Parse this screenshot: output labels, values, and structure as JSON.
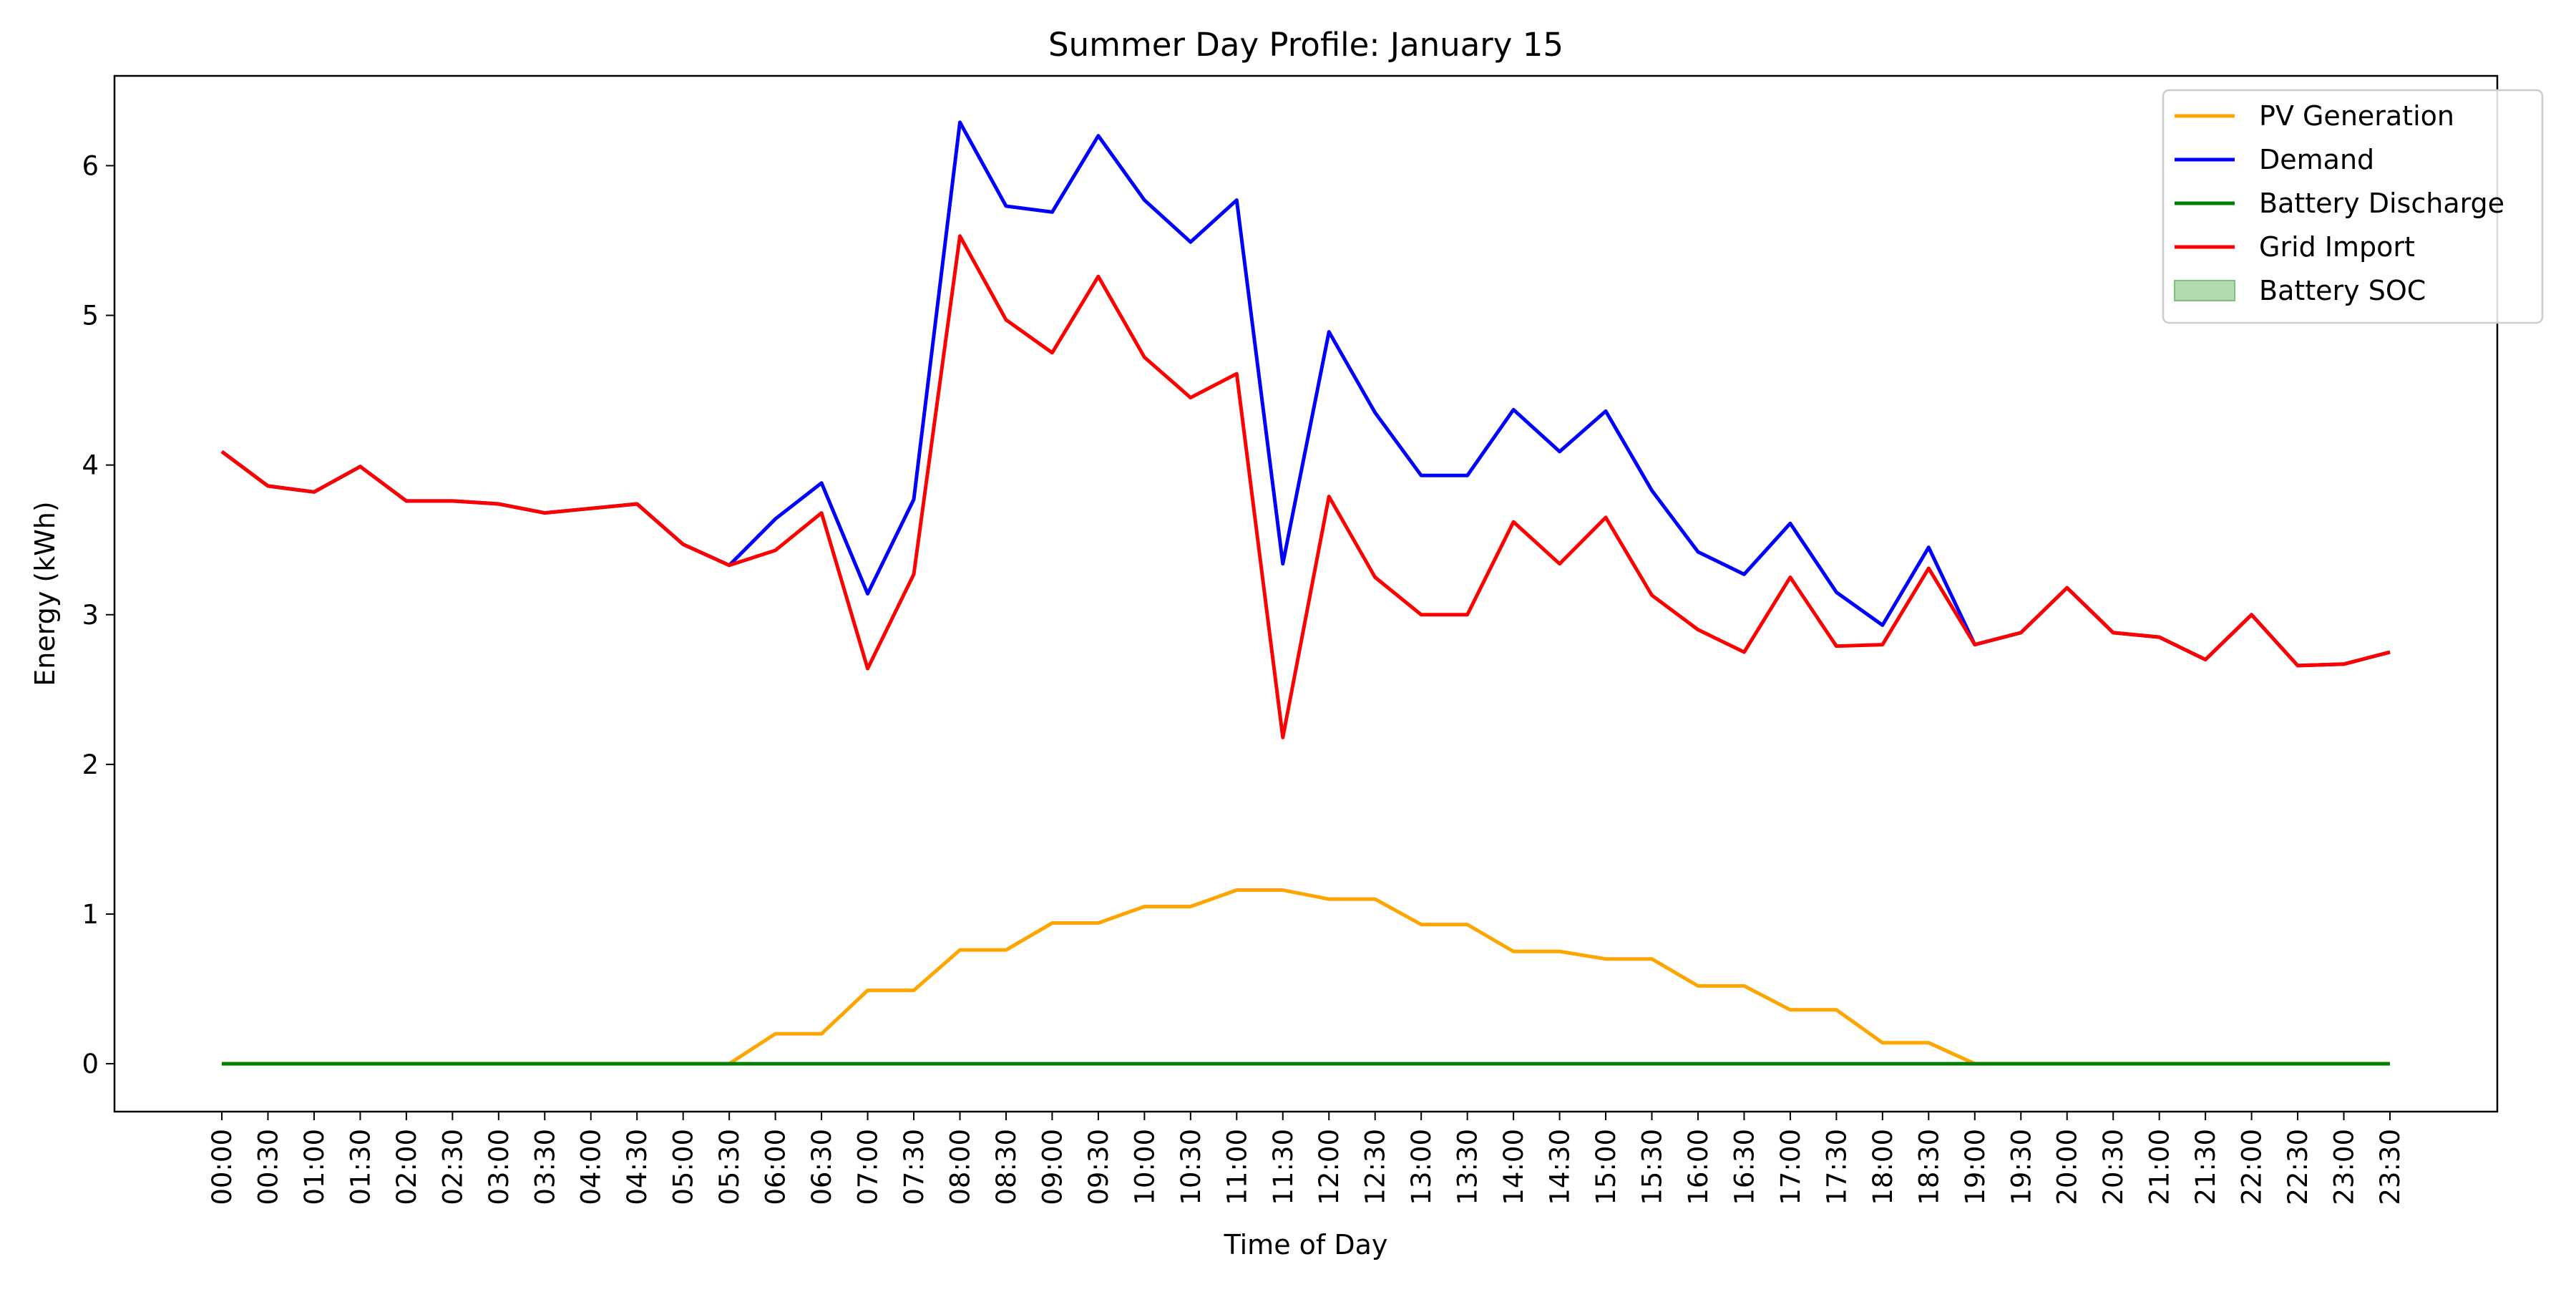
{
  "chart_data": {
    "type": "line",
    "title": "Summer Day Profile: January 15",
    "xlabel": "Time of Day",
    "ylabel": "Energy (kWh)",
    "ylim": [
      -0.32,
      6.6
    ],
    "yticks": [
      0,
      1,
      2,
      3,
      4,
      5,
      6
    ],
    "grid": false,
    "legend_position": "top-right",
    "categories": [
      "00:00",
      "00:30",
      "01:00",
      "01:30",
      "02:00",
      "02:30",
      "03:00",
      "03:30",
      "04:00",
      "04:30",
      "05:00",
      "05:30",
      "06:00",
      "06:30",
      "07:00",
      "07:30",
      "08:00",
      "08:30",
      "09:00",
      "09:30",
      "10:00",
      "10:30",
      "11:00",
      "11:30",
      "12:00",
      "12:30",
      "13:00",
      "13:30",
      "14:00",
      "14:30",
      "15:00",
      "15:30",
      "16:00",
      "16:30",
      "17:00",
      "17:30",
      "18:00",
      "18:30",
      "19:00",
      "19:30",
      "20:00",
      "20:30",
      "21:00",
      "21:30",
      "22:00",
      "22:30",
      "23:00",
      "23:30"
    ],
    "series": [
      {
        "name": "PV Generation",
        "color": "#ffa500",
        "kind": "line",
        "values": [
          0,
          0,
          0,
          0,
          0,
          0,
          0,
          0,
          0,
          0,
          0,
          0,
          0.2,
          0.2,
          0.49,
          0.49,
          0.76,
          0.76,
          0.94,
          0.94,
          1.05,
          1.05,
          1.16,
          1.16,
          1.1,
          1.1,
          0.93,
          0.93,
          0.75,
          0.75,
          0.7,
          0.7,
          0.52,
          0.52,
          0.36,
          0.36,
          0.14,
          0.14,
          0,
          0,
          0,
          0,
          0,
          0,
          0,
          0,
          0,
          0
        ]
      },
      {
        "name": "Demand",
        "color": "#0000ff",
        "kind": "line",
        "values": [
          4.09,
          3.86,
          3.82,
          3.99,
          3.76,
          3.76,
          3.74,
          3.68,
          3.71,
          3.74,
          3.47,
          3.33,
          3.64,
          3.88,
          3.14,
          3.77,
          6.29,
          5.73,
          5.69,
          6.2,
          5.77,
          5.49,
          5.77,
          3.34,
          4.89,
          4.35,
          3.93,
          3.93,
          4.37,
          4.09,
          4.36,
          3.83,
          3.42,
          3.27,
          3.61,
          3.15,
          2.93,
          3.45,
          2.8,
          2.88,
          3.18,
          2.88,
          2.85,
          2.7,
          3.0,
          2.66,
          2.67,
          2.75
        ]
      },
      {
        "name": "Battery Discharge",
        "color": "#008000",
        "kind": "line",
        "values": [
          0,
          0,
          0,
          0,
          0,
          0,
          0,
          0,
          0,
          0,
          0,
          0,
          0,
          0,
          0,
          0,
          0,
          0,
          0,
          0,
          0,
          0,
          0,
          0,
          0,
          0,
          0,
          0,
          0,
          0,
          0,
          0,
          0,
          0,
          0,
          0,
          0,
          0,
          0,
          0,
          0,
          0,
          0,
          0,
          0,
          0,
          0,
          0
        ]
      },
      {
        "name": "Grid Import",
        "color": "#ff0000",
        "kind": "line",
        "values": [
          4.09,
          3.86,
          3.82,
          3.99,
          3.76,
          3.76,
          3.74,
          3.68,
          3.71,
          3.74,
          3.47,
          3.33,
          3.43,
          3.68,
          2.64,
          3.27,
          5.53,
          4.97,
          4.75,
          5.26,
          4.72,
          4.45,
          4.61,
          2.18,
          3.79,
          3.25,
          3.0,
          3.0,
          3.62,
          3.34,
          3.65,
          3.13,
          2.9,
          2.75,
          3.25,
          2.79,
          2.8,
          3.31,
          2.8,
          2.88,
          3.18,
          2.88,
          2.85,
          2.7,
          3.0,
          2.66,
          2.67,
          2.75
        ]
      },
      {
        "name": "Battery SOC",
        "color": "#b2dbb2",
        "edge_color": "#7fbf7f",
        "kind": "fill",
        "values": [
          0,
          0,
          0,
          0,
          0,
          0,
          0,
          0,
          0,
          0,
          0,
          0,
          0,
          0,
          0,
          0,
          0,
          0,
          0,
          0,
          0,
          0,
          0,
          0,
          0,
          0,
          0,
          0,
          0,
          0,
          0,
          0,
          0,
          0,
          0,
          0,
          0,
          0,
          0,
          0,
          0,
          0,
          0,
          0,
          0,
          0,
          0,
          0
        ]
      }
    ]
  }
}
